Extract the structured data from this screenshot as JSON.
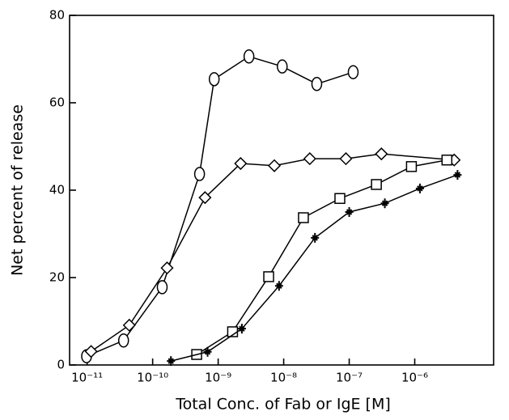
{
  "chart_data": {
    "type": "scatter-line",
    "x_label": "Total Conc. of Fab or IgE [M]",
    "y_label": "Net percent of release",
    "xscale": "log",
    "xlim": [
      5.4e-12,
      1.6e-05
    ],
    "ylim": [
      0,
      80
    ],
    "xticks": [
      {
        "value": 1e-11,
        "label": "10⁻¹¹"
      },
      {
        "value": 1e-10,
        "label": "10⁻¹⁰"
      },
      {
        "value": 1e-09,
        "label": "10⁻⁹"
      },
      {
        "value": 1e-08,
        "label": "10⁻⁸"
      },
      {
        "value": 1e-07,
        "label": "10⁻⁷"
      },
      {
        "value": 1e-06,
        "label": "10⁻⁶"
      }
    ],
    "yticks": [
      0,
      20,
      40,
      60,
      80
    ],
    "series": [
      {
        "marker": "oval",
        "color": "#000000",
        "x": [
          9.8e-12,
          3.6e-11,
          1.4e-10,
          5.2e-10,
          8.7e-10,
          2.95e-09,
          9.5e-09,
          3.2e-08,
          1.15e-07
        ],
        "values": [
          2,
          5.6,
          17.8,
          43.7,
          65.4,
          70.6,
          68.3,
          64.3,
          67
        ]
      },
      {
        "marker": "diamond",
        "color": "#000000",
        "x": [
          1.15e-11,
          4.4e-11,
          1.66e-10,
          6.3e-10,
          2.2e-09,
          7.2e-09,
          2.5e-08,
          8.9e-08,
          3.1e-07,
          4e-06
        ],
        "values": [
          3.1,
          9.1,
          22.2,
          38.3,
          46.1,
          45.6,
          47.2,
          47.2,
          48.3,
          46.9
        ]
      },
      {
        "marker": "square",
        "color": "#000000",
        "x": [
          4.7e-10,
          1.66e-09,
          5.9e-09,
          2e-08,
          7.2e-08,
          2.6e-07,
          8.9e-07,
          3.1e-06
        ],
        "values": [
          2.4,
          7.6,
          20.2,
          33.7,
          38.1,
          41.3,
          45.4,
          46.9
        ]
      },
      {
        "marker": "star",
        "color": "#000000",
        "x": [
          1.9e-10,
          6.9e-10,
          2.3e-09,
          8.5e-09,
          3e-08,
          1e-07,
          3.5e-07,
          1.2e-06,
          4.5e-06
        ],
        "values": [
          0.9,
          3,
          8.3,
          18.1,
          29.1,
          35,
          37,
          40.4,
          43.5
        ]
      }
    ]
  }
}
